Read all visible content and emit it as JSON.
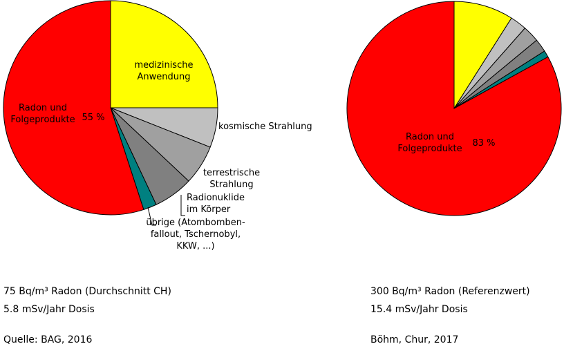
{
  "chart_data": [
    {
      "type": "pie",
      "categories": [
        "medizinische\nAnwendung",
        "kosmische Strahlung",
        "terrestrische\nStrahlung",
        "Radionuklide\nim Körper",
        "übrige (Atombomben-\nfallout, Tschernobyl,\nKKW, ...)",
        "Radon und\nFolgeprodukte"
      ],
      "values": [
        25,
        6,
        6,
        6,
        2,
        55
      ],
      "value_labels": [
        null,
        null,
        null,
        null,
        null,
        "55 %"
      ],
      "colors": [
        "#ffff00",
        "#c0c0c0",
        "#a0a0a0",
        "#808080",
        "#008080",
        "#ff0000"
      ],
      "notes": [
        "75 Bq/m³ Radon (Durchschnitt CH)",
        "5.8 mSv/Jahr Dosis",
        "Quelle: BAG, 2016"
      ]
    },
    {
      "type": "pie",
      "categories": [
        null,
        null,
        null,
        null,
        null,
        "Radon und\nFolgeprodukte"
      ],
      "values": [
        9,
        2.5,
        2.5,
        2,
        1,
        83
      ],
      "value_labels": [
        null,
        null,
        null,
        null,
        null,
        "83 %"
      ],
      "colors": [
        "#ffff00",
        "#c0c0c0",
        "#a0a0a0",
        "#808080",
        "#008080",
        "#ff0000"
      ],
      "notes": [
        "300 Bq/m³ Radon (Referenzwert)",
        "15.4 mSv/Jahr Dosis",
        "Böhm, Chur, 2017"
      ]
    }
  ]
}
